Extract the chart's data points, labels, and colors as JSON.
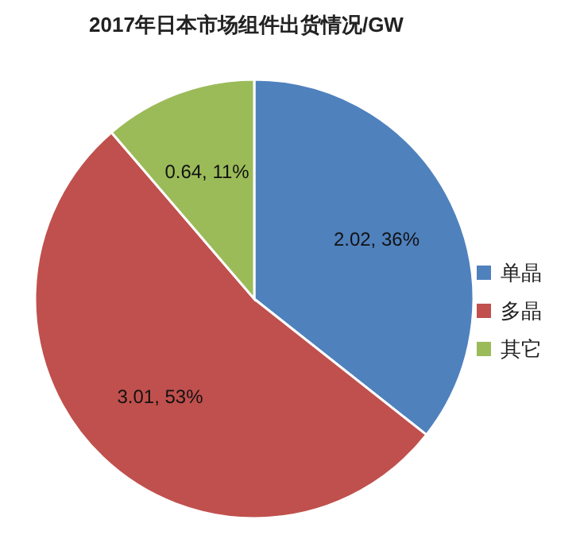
{
  "chart_data": {
    "type": "pie",
    "title": "2017年日本市场组件出货情况/GW",
    "categories": [
      "单晶",
      "多晶",
      "其它"
    ],
    "values": [
      2.02,
      3.01,
      0.64
    ],
    "value_labels": [
      "2.02, 36%",
      "3.01, 53%",
      "0.64, 11%"
    ],
    "colors": [
      "#4f81bd",
      "#c0504d",
      "#9bbb59"
    ],
    "legend": "right"
  }
}
